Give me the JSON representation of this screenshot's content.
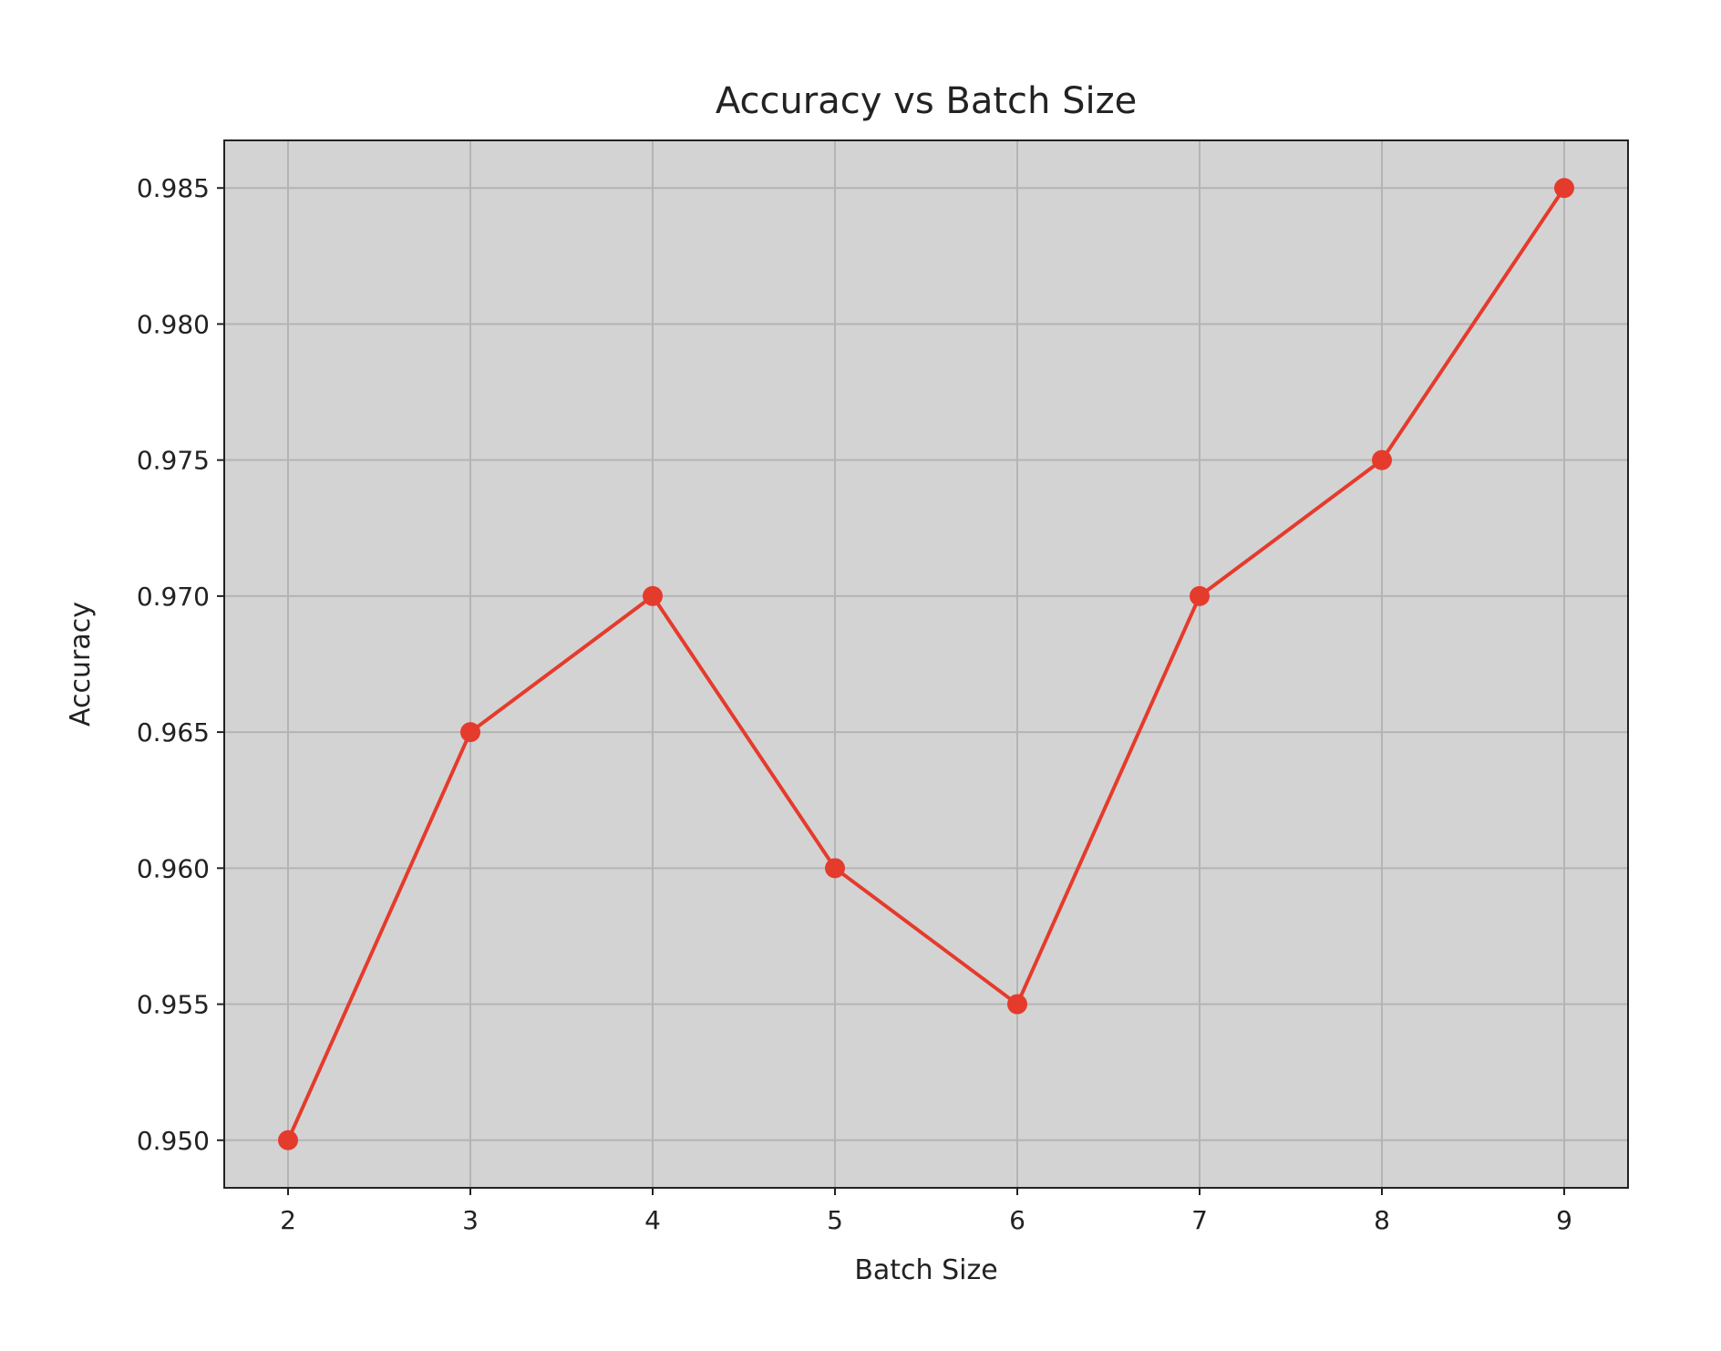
{
  "chart_data": {
    "type": "line",
    "title": "Accuracy vs Batch Size",
    "xlabel": "Batch Size",
    "ylabel": "Accuracy",
    "x": [
      2,
      3,
      4,
      5,
      6,
      7,
      8,
      9
    ],
    "series": [
      {
        "values": [
          0.95,
          0.965,
          0.97,
          0.96,
          0.955,
          0.97,
          0.975,
          0.985
        ]
      }
    ],
    "xticks": [
      2,
      3,
      4,
      5,
      6,
      7,
      8,
      9
    ],
    "xtick_labels": [
      "2",
      "3",
      "4",
      "5",
      "6",
      "7",
      "8",
      "9"
    ],
    "yticks": [
      0.95,
      0.955,
      0.96,
      0.965,
      0.97,
      0.975,
      0.98,
      0.985
    ],
    "ytick_labels": [
      "0.950",
      "0.955",
      "0.960",
      "0.965",
      "0.970",
      "0.975",
      "0.980",
      "0.985"
    ],
    "xlim": [
      1.65,
      9.35
    ],
    "ylim": [
      0.94825,
      0.98675
    ],
    "grid": true,
    "marker": "circle",
    "colors": {
      "line": "#e53b2c",
      "plot_background": "#d3d3d3",
      "grid": "#b4b4b4",
      "frame": "#222222"
    }
  }
}
